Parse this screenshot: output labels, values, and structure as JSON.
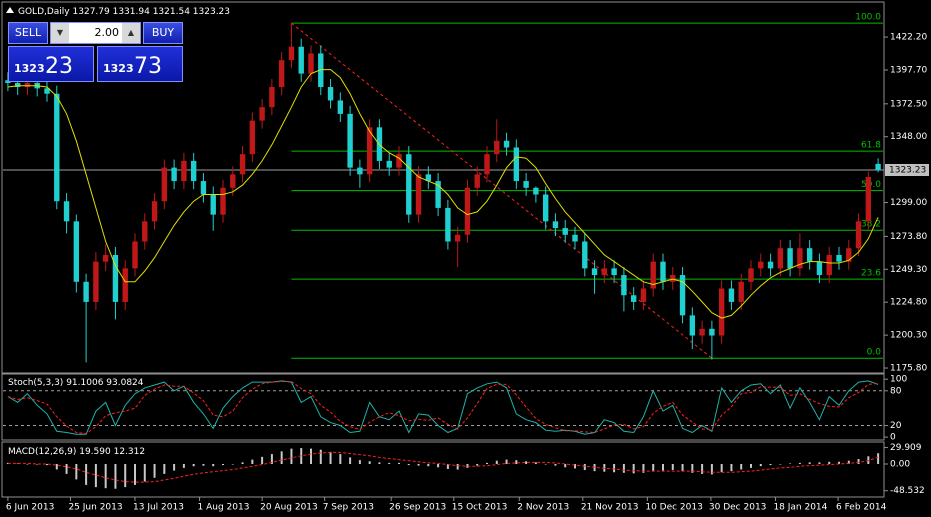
{
  "chart_data": {
    "type": "candlestick",
    "symbol": "GOLD,Daily",
    "bull_color": "#c01818",
    "bear_color": "#20d0d0",
    "xlim": [
      -0.5,
      89.5
    ],
    "ylim": [
      1172.1,
      1448.3
    ],
    "xticks": [
      {
        "value": 0,
        "label": "6 Jun 2013"
      },
      {
        "value": 6.4,
        "label": "25 Jun 2013"
      },
      {
        "value": 13,
        "label": "13 Jul 2013"
      },
      {
        "value": 19.6,
        "label": "1 Aug 2013"
      },
      {
        "value": 26,
        "label": "20 Aug 2013"
      },
      {
        "value": 32.4,
        "label": "7 Sep 2013"
      },
      {
        "value": 39.2,
        "label": "26 Sep 2013"
      },
      {
        "value": 45.6,
        "label": "15 Oct 2013"
      },
      {
        "value": 52.3,
        "label": "2 Nov 2013"
      },
      {
        "value": 58.8,
        "label": "21 Nov 2013"
      },
      {
        "value": 65.4,
        "label": "10 Dec 2013"
      },
      {
        "value": 71.9,
        "label": "30 Dec 2013"
      },
      {
        "value": 78.5,
        "label": "18 Jan 2014"
      },
      {
        "value": 84.9,
        "label": "6 Feb 2014"
      }
    ],
    "yticks": [
      {
        "value": 1422.2,
        "label": "1422.20"
      },
      {
        "value": 1397.7,
        "label": "1397.70"
      },
      {
        "value": 1372.5,
        "label": "1372.50"
      },
      {
        "value": 1348,
        "label": "1348.00"
      },
      {
        "value": 1299,
        "label": "1299.00"
      },
      {
        "value": 1273.8,
        "label": "1273.80"
      },
      {
        "value": 1249.3,
        "label": "1249.30"
      },
      {
        "value": 1224.8,
        "label": "1224.80"
      },
      {
        "value": 1200.3,
        "label": "1200.30"
      },
      {
        "value": 1175.8,
        "label": "1175.80"
      }
    ],
    "candles": [
      [
        1390,
        1396,
        1382,
        1388
      ],
      [
        1388,
        1394,
        1379,
        1385
      ],
      [
        1385,
        1394,
        1379,
        1388
      ],
      [
        1388,
        1394,
        1378,
        1384
      ],
      [
        1384,
        1390,
        1374,
        1380
      ],
      [
        1380,
        1386,
        1294,
        1300
      ],
      [
        1300,
        1306,
        1276,
        1285
      ],
      [
        1285,
        1290,
        1232,
        1240
      ],
      [
        1240,
        1246,
        1180,
        1225
      ],
      [
        1225,
        1262,
        1219,
        1255
      ],
      [
        1255,
        1268,
        1248,
        1260
      ],
      [
        1260,
        1266,
        1212,
        1225
      ],
      [
        1225,
        1256,
        1219,
        1250
      ],
      [
        1250,
        1276,
        1244,
        1270
      ],
      [
        1270,
        1291,
        1264,
        1285
      ],
      [
        1285,
        1306,
        1279,
        1300
      ],
      [
        1300,
        1331,
        1294,
        1325
      ],
      [
        1325,
        1331,
        1309,
        1315
      ],
      [
        1315,
        1336,
        1309,
        1330
      ],
      [
        1330,
        1336,
        1309,
        1315
      ],
      [
        1315,
        1321,
        1299,
        1305
      ],
      [
        1305,
        1311,
        1278,
        1290
      ],
      [
        1290,
        1316,
        1284,
        1310
      ],
      [
        1310,
        1326,
        1304,
        1320
      ],
      [
        1320,
        1341,
        1314,
        1335
      ],
      [
        1335,
        1366,
        1329,
        1360
      ],
      [
        1360,
        1376,
        1354,
        1370
      ],
      [
        1370,
        1391,
        1364,
        1385
      ],
      [
        1385,
        1411,
        1379,
        1405
      ],
      [
        1405,
        1433,
        1399,
        1415
      ],
      [
        1415,
        1421,
        1389,
        1395
      ],
      [
        1395,
        1416,
        1389,
        1410
      ],
      [
        1410,
        1416,
        1379,
        1385
      ],
      [
        1385,
        1391,
        1369,
        1375
      ],
      [
        1375,
        1381,
        1359,
        1365
      ],
      [
        1365,
        1371,
        1319,
        1325
      ],
      [
        1325,
        1331,
        1310,
        1320
      ],
      [
        1320,
        1361,
        1314,
        1355
      ],
      [
        1355,
        1361,
        1324,
        1330
      ],
      [
        1330,
        1336,
        1319,
        1325
      ],
      [
        1325,
        1341,
        1319,
        1335
      ],
      [
        1335,
        1341,
        1284,
        1290
      ],
      [
        1290,
        1326,
        1284,
        1320
      ],
      [
        1320,
        1326,
        1309,
        1315
      ],
      [
        1315,
        1321,
        1289,
        1295
      ],
      [
        1295,
        1301,
        1264,
        1270
      ],
      [
        1270,
        1281,
        1251,
        1275
      ],
      [
        1275,
        1316,
        1269,
        1310
      ],
      [
        1310,
        1326,
        1304,
        1320
      ],
      [
        1320,
        1341,
        1314,
        1335
      ],
      [
        1335,
        1361,
        1329,
        1345
      ],
      [
        1345,
        1351,
        1334,
        1340
      ],
      [
        1340,
        1346,
        1309,
        1315
      ],
      [
        1315,
        1321,
        1304,
        1310
      ],
      [
        1310,
        1311,
        1299,
        1305
      ],
      [
        1305,
        1311,
        1279,
        1285
      ],
      [
        1285,
        1291,
        1274,
        1280
      ],
      [
        1280,
        1286,
        1269,
        1275
      ],
      [
        1275,
        1281,
        1264,
        1270
      ],
      [
        1270,
        1276,
        1244,
        1250
      ],
      [
        1250,
        1256,
        1231,
        1245
      ],
      [
        1245,
        1256,
        1239,
        1250
      ],
      [
        1250,
        1256,
        1239,
        1245
      ],
      [
        1245,
        1251,
        1218,
        1230
      ],
      [
        1230,
        1236,
        1219,
        1225
      ],
      [
        1225,
        1241,
        1219,
        1235
      ],
      [
        1235,
        1261,
        1229,
        1255
      ],
      [
        1255,
        1261,
        1234,
        1240
      ],
      [
        1240,
        1251,
        1234,
        1245
      ],
      [
        1245,
        1251,
        1209,
        1215
      ],
      [
        1215,
        1221,
        1190,
        1200
      ],
      [
        1200,
        1211,
        1194,
        1205
      ],
      [
        1205,
        1211,
        1182,
        1200
      ],
      [
        1200,
        1241,
        1194,
        1235
      ],
      [
        1235,
        1241,
        1219,
        1225
      ],
      [
        1225,
        1246,
        1219,
        1240
      ],
      [
        1240,
        1256,
        1234,
        1250
      ],
      [
        1250,
        1261,
        1244,
        1255
      ],
      [
        1255,
        1261,
        1244,
        1250
      ],
      [
        1250,
        1271,
        1244,
        1265
      ],
      [
        1265,
        1271,
        1244,
        1250
      ],
      [
        1250,
        1276,
        1244,
        1265
      ],
      [
        1265,
        1271,
        1249,
        1255
      ],
      [
        1255,
        1261,
        1239,
        1245
      ],
      [
        1245,
        1266,
        1239,
        1260
      ],
      [
        1260,
        1266,
        1249,
        1255
      ],
      [
        1255,
        1271,
        1249,
        1265
      ],
      [
        1265,
        1291,
        1259,
        1285
      ],
      [
        1285,
        1322,
        1279,
        1318
      ],
      [
        1327.79,
        1331.94,
        1321.54,
        1323.23
      ]
    ],
    "ma": {
      "color": "#e0e000",
      "values": [
        1385,
        1386,
        1386,
        1386,
        1385,
        1378,
        1365,
        1345,
        1320,
        1295,
        1270,
        1252,
        1240,
        1240,
        1248,
        1258,
        1270,
        1282,
        1292,
        1300,
        1305,
        1305,
        1305,
        1307,
        1312,
        1320,
        1330,
        1342,
        1356,
        1370,
        1385,
        1395,
        1398,
        1398,
        1392,
        1380,
        1365,
        1352,
        1342,
        1336,
        1332,
        1325,
        1318,
        1315,
        1312,
        1305,
        1295,
        1290,
        1292,
        1300,
        1312,
        1325,
        1333,
        1332,
        1325,
        1313,
        1302,
        1292,
        1284,
        1276,
        1268,
        1260,
        1255,
        1250,
        1245,
        1240,
        1238,
        1240,
        1242,
        1240,
        1233,
        1225,
        1217,
        1213,
        1215,
        1222,
        1230,
        1237,
        1243,
        1247,
        1250,
        1253,
        1255,
        1255,
        1254,
        1254,
        1256,
        1262,
        1272,
        1288
      ]
    },
    "fibonacci": {
      "color": "#00c000",
      "x": [
        29,
        72
      ],
      "levels": [
        {
          "label": "100.0",
          "value": 1432.6
        },
        {
          "label": "61.8",
          "value": 1337.3
        },
        {
          "label": "50.0",
          "value": 1307.9
        },
        {
          "label": "38.2",
          "value": 1278.4
        },
        {
          "label": "23.6",
          "value": 1242.0
        },
        {
          "label": "0.0",
          "value": 1183.1
        }
      ]
    },
    "stochastic": {
      "name": "Stoch(5,3,3)",
      "ylim": [
        -5,
        109
      ],
      "yticks": [
        100,
        80,
        20,
        0
      ],
      "levels": [
        80,
        20
      ],
      "main": {
        "color": "#20b2aa",
        "values": [
          70,
          60,
          75,
          55,
          40,
          10,
          8,
          5,
          5,
          45,
          60,
          20,
          55,
          75,
          85,
          90,
          95,
          80,
          88,
          60,
          40,
          15,
          50,
          70,
          85,
          95,
          95,
          95,
          97,
          95,
          60,
          70,
          35,
          25,
          20,
          8,
          10,
          60,
          35,
          30,
          45,
          8,
          40,
          38,
          20,
          8,
          15,
          75,
          85,
          92,
          95,
          85,
          40,
          30,
          25,
          12,
          10,
          12,
          10,
          5,
          8,
          30,
          25,
          10,
          8,
          35,
          80,
          45,
          55,
          15,
          8,
          20,
          10,
          85,
          60,
          80,
          90,
          92,
          75,
          90,
          50,
          85,
          60,
          30,
          70,
          55,
          80,
          95,
          97,
          91.1006
        ]
      },
      "signal": {
        "color": "#ff2020",
        "values": [
          70,
          65,
          68,
          63,
          57,
          35,
          19,
          8,
          6,
          18,
          37,
          42,
          45,
          50,
          72,
          83,
          90,
          88,
          88,
          76,
          63,
          38,
          35,
          45,
          68,
          83,
          92,
          95,
          96,
          96,
          84,
          75,
          55,
          43,
          27,
          18,
          13,
          26,
          35,
          42,
          37,
          28,
          31,
          29,
          33,
          22,
          14,
          33,
          58,
          84,
          91,
          91,
          73,
          52,
          32,
          22,
          16,
          11,
          11,
          9,
          8,
          14,
          21,
          22,
          14,
          18,
          41,
          53,
          60,
          38,
          26,
          14,
          13,
          38,
          52,
          75,
          77,
          87,
          86,
          86,
          72,
          75,
          65,
          58,
          53,
          52,
          68,
          77,
          91,
          93.0824
        ]
      }
    },
    "macd": {
      "name": "MACD(12,26,9)",
      "ylim": [
        -60,
        40
      ],
      "yticks": [
        29.909,
        {
          "value": 0,
          "label": "0.00"
        },
        -48.532
      ],
      "last_labels": [
        "19.590",
        "12.312"
      ],
      "histogram": {
        "color": "#c8c8c8",
        "values": [
          2,
          1,
          0,
          -1,
          -2,
          -10,
          -18,
          -28,
          -38,
          -42,
          -44,
          -45,
          -42,
          -38,
          -32,
          -25,
          -18,
          -12,
          -7,
          -4,
          -3,
          -4,
          -2,
          0,
          3,
          8,
          13,
          18,
          23,
          28,
          29,
          28,
          26,
          22,
          18,
          12,
          7,
          5,
          3,
          2,
          2,
          -2,
          -3,
          -4,
          -6,
          -9,
          -10,
          -7,
          -3,
          2,
          6,
          8,
          7,
          5,
          3,
          0,
          -3,
          -6,
          -8,
          -11,
          -13,
          -14,
          -15,
          -16,
          -17,
          -16,
          -13,
          -12,
          -11,
          -13,
          -16,
          -18,
          -19,
          -15,
          -13,
          -10,
          -7,
          -4,
          -2,
          0,
          1,
          2,
          3,
          3,
          4,
          4,
          6,
          9,
          14,
          19.59
        ]
      },
      "signal": {
        "color": "#ff2020",
        "values": [
          1,
          1,
          1,
          0,
          0,
          -2,
          -5,
          -9,
          -15,
          -20,
          -25,
          -29,
          -32,
          -33,
          -33,
          -32,
          -29,
          -26,
          -22,
          -19,
          -16,
          -14,
          -12,
          -10,
          -7,
          -4,
          -1,
          3,
          7,
          11,
          15,
          18,
          20,
          21,
          21,
          19,
          17,
          15,
          12,
          10,
          8,
          6,
          4,
          2,
          1,
          -1,
          -3,
          -4,
          -4,
          -3,
          -1,
          1,
          2,
          3,
          3,
          3,
          2,
          0,
          -2,
          -4,
          -6,
          -8,
          -9,
          -11,
          -12,
          -13,
          -13,
          -13,
          -13,
          -13,
          -13,
          -14,
          -15,
          -15,
          -15,
          -14,
          -13,
          -11,
          -9,
          -7,
          -6,
          -4,
          -3,
          -2,
          -1,
          0,
          1,
          3,
          6,
          12.312
        ]
      }
    }
  },
  "trade_panel": {
    "sell": "SELL",
    "buy": "BUY",
    "lots": "2.00",
    "bid": [
      "1323",
      "23"
    ],
    "ask": [
      "1323",
      "73"
    ]
  }
}
